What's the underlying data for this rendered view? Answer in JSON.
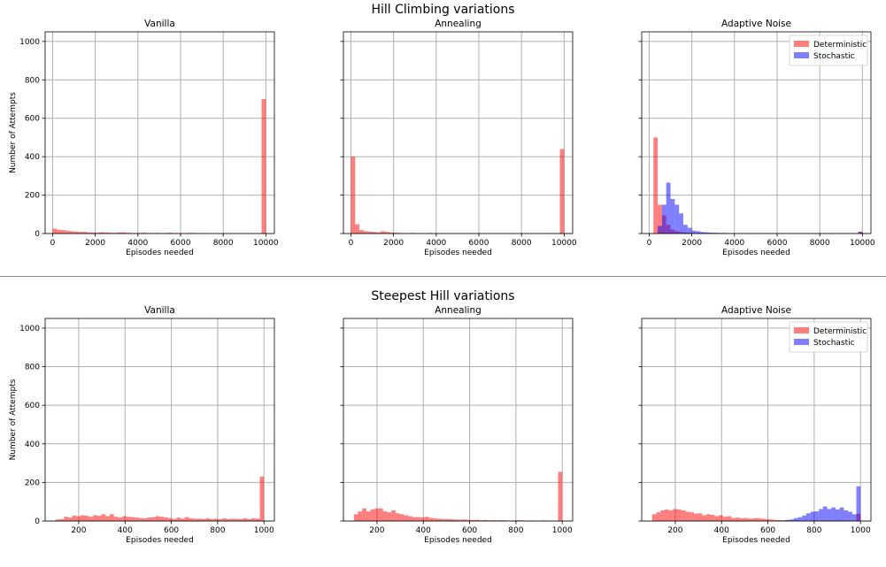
{
  "figure": {
    "top_title": "Hill Climbing variations",
    "bottom_title": "Steepest Hill variations"
  },
  "colors": {
    "deterministic": "#ff0000",
    "stochastic": "#0000ff",
    "grid": "#b0b0b0",
    "axis": "#000000"
  },
  "chart_data": [
    {
      "type": "histogram",
      "group": "Hill Climbing variations",
      "title": "Vanilla",
      "xlabel": "Episodes needed",
      "ylabel": "Number of Attempts",
      "xlim": [
        -350,
        10400
      ],
      "ylim": [
        0,
        1050
      ],
      "xticks": [
        0,
        2000,
        4000,
        6000,
        8000,
        10000
      ],
      "yticks": [
        0,
        200,
        400,
        600,
        800,
        1000
      ],
      "grid": true,
      "legend": null,
      "series": [
        {
          "name": "Deterministic",
          "color": "#ff0000",
          "bin_start": 0,
          "bin_width": 200,
          "counts": [
            25,
            20,
            18,
            15,
            12,
            10,
            8,
            9,
            6,
            5,
            4,
            7,
            5,
            4,
            3,
            5,
            6,
            4,
            3,
            2,
            3,
            4,
            2,
            2,
            3,
            2,
            3,
            4,
            2,
            2,
            1,
            2,
            3,
            2,
            1,
            2,
            2,
            1,
            2,
            1,
            2,
            1,
            1,
            2,
            1,
            1,
            1,
            1,
            1,
            700
          ]
        }
      ]
    },
    {
      "type": "histogram",
      "group": "Hill Climbing variations",
      "title": "Annealing",
      "xlabel": "Episodes needed",
      "ylabel": "",
      "xlim": [
        -350,
        10400
      ],
      "ylim": [
        0,
        1050
      ],
      "xticks": [
        0,
        2000,
        4000,
        6000,
        8000,
        10000
      ],
      "yticks": [
        0,
        200,
        400,
        600,
        800,
        1000
      ],
      "grid": true,
      "legend": null,
      "series": [
        {
          "name": "Deterministic",
          "color": "#ff0000",
          "bin_start": 0,
          "bin_width": 200,
          "counts": [
            400,
            48,
            18,
            12,
            10,
            8,
            6,
            12,
            8,
            5,
            4,
            3,
            2,
            2,
            3,
            2,
            1,
            2,
            3,
            1,
            1,
            1,
            2,
            1,
            1,
            2,
            1,
            1,
            1,
            1,
            1,
            1,
            1,
            1,
            1,
            1,
            1,
            1,
            1,
            1,
            1,
            1,
            1,
            1,
            1,
            1,
            1,
            1,
            1,
            440
          ]
        }
      ]
    },
    {
      "type": "histogram",
      "group": "Hill Climbing variations",
      "title": "Adaptive Noise",
      "xlabel": "Episodes needed",
      "ylabel": "",
      "xlim": [
        -350,
        10400
      ],
      "ylim": [
        0,
        1050
      ],
      "xticks": [
        0,
        2000,
        4000,
        6000,
        8000,
        10000
      ],
      "yticks": [
        0,
        200,
        400,
        600,
        800,
        1000
      ],
      "grid": true,
      "legend": "upper right",
      "series": [
        {
          "name": "Deterministic",
          "color": "#ff0000",
          "bin_start": 0,
          "bin_width": 200,
          "counts": [
            0,
            500,
            150,
            95,
            45,
            20,
            12,
            8,
            5,
            4,
            3,
            3,
            2,
            2,
            2,
            1,
            1,
            1,
            1,
            1,
            1,
            1,
            1,
            1,
            1,
            1,
            1,
            1,
            1,
            1,
            1,
            1,
            1,
            1,
            1,
            1,
            1,
            1,
            1,
            1,
            1,
            1,
            1,
            1,
            1,
            1,
            1,
            1,
            1,
            10
          ]
        },
        {
          "name": "Stochastic",
          "color": "#0000ff",
          "bin_start": 0,
          "bin_width": 200,
          "counts": [
            0,
            0,
            40,
            150,
            265,
            180,
            150,
            105,
            45,
            30,
            15,
            12,
            8,
            6,
            5,
            4,
            3,
            3,
            2,
            2,
            1,
            1,
            1,
            1,
            1,
            1,
            1,
            1,
            1,
            1,
            1,
            1,
            1,
            1,
            1,
            1,
            1,
            1,
            1,
            1,
            1,
            1,
            1,
            1,
            1,
            1,
            1,
            1,
            1,
            8
          ]
        }
      ]
    },
    {
      "type": "histogram",
      "group": "Steepest Hill variations",
      "title": "Vanilla",
      "xlabel": "Episodes needed",
      "ylabel": "Number of Attempts",
      "xlim": [
        55,
        1045
      ],
      "ylim": [
        0,
        1050
      ],
      "xticks": [
        200,
        400,
        600,
        800,
        1000
      ],
      "yticks": [
        0,
        200,
        400,
        600,
        800,
        1000
      ],
      "grid": true,
      "legend": null,
      "series": [
        {
          "name": "Deterministic",
          "color": "#ff0000",
          "bin_start": 100,
          "bin_width": 18,
          "counts": [
            8,
            10,
            22,
            18,
            28,
            25,
            30,
            27,
            22,
            30,
            27,
            35,
            25,
            35,
            22,
            18,
            25,
            22,
            20,
            18,
            15,
            14,
            18,
            20,
            25,
            22,
            18,
            15,
            10,
            18,
            12,
            20,
            14,
            12,
            12,
            10,
            14,
            10,
            12,
            9,
            14,
            10,
            12,
            11,
            10,
            14,
            9,
            14,
            12,
            230
          ]
        }
      ]
    },
    {
      "type": "histogram",
      "group": "Steepest Hill variations",
      "title": "Annealing",
      "xlabel": "Episodes needed",
      "ylabel": "",
      "xlim": [
        55,
        1045
      ],
      "ylim": [
        0,
        1050
      ],
      "xticks": [
        200,
        400,
        600,
        800,
        1000
      ],
      "yticks": [
        0,
        200,
        400,
        600,
        800,
        1000
      ],
      "grid": true,
      "legend": null,
      "series": [
        {
          "name": "Deterministic",
          "color": "#ff0000",
          "bin_start": 100,
          "bin_width": 18,
          "counts": [
            35,
            50,
            65,
            50,
            60,
            65,
            65,
            50,
            45,
            55,
            40,
            35,
            30,
            25,
            20,
            20,
            18,
            22,
            16,
            14,
            12,
            10,
            10,
            9,
            8,
            7,
            8,
            6,
            5,
            6,
            4,
            5,
            3,
            4,
            3,
            4,
            3,
            2,
            3,
            4,
            3,
            2,
            3,
            2,
            2,
            3,
            2,
            2,
            1,
            255
          ]
        }
      ]
    },
    {
      "type": "histogram",
      "group": "Steepest Hill variations",
      "title": "Adaptive Noise",
      "xlabel": "Episodes needed",
      "ylabel": "",
      "xlim": [
        55,
        1045
      ],
      "ylim": [
        0,
        1050
      ],
      "xticks": [
        200,
        400,
        600,
        800,
        1000
      ],
      "yticks": [
        0,
        200,
        400,
        600,
        800,
        1000
      ],
      "grid": true,
      "legend": "upper right",
      "series": [
        {
          "name": "Deterministic",
          "color": "#ff0000",
          "bin_start": 100,
          "bin_width": 18,
          "counts": [
            35,
            45,
            55,
            60,
            55,
            62,
            60,
            55,
            48,
            45,
            38,
            40,
            30,
            35,
            32,
            25,
            30,
            22,
            25,
            15,
            18,
            14,
            16,
            12,
            14,
            15,
            12,
            10,
            8,
            6,
            5,
            4,
            4,
            3,
            3,
            2,
            2,
            2,
            2,
            2,
            2,
            2,
            2,
            2,
            1,
            1,
            1,
            1,
            1,
            38
          ]
        },
        {
          "name": "Stochastic",
          "color": "#0000ff",
          "bin_start": 100,
          "bin_width": 18,
          "counts": [
            0,
            0,
            0,
            0,
            0,
            0,
            0,
            0,
            0,
            0,
            0,
            0,
            0,
            0,
            0,
            0,
            0,
            0,
            0,
            0,
            0,
            0,
            0,
            0,
            0,
            0,
            0,
            0,
            0,
            0,
            1,
            2,
            5,
            8,
            15,
            20,
            28,
            40,
            48,
            50,
            62,
            75,
            62,
            70,
            60,
            70,
            55,
            48,
            35,
            180
          ]
        }
      ]
    }
  ]
}
